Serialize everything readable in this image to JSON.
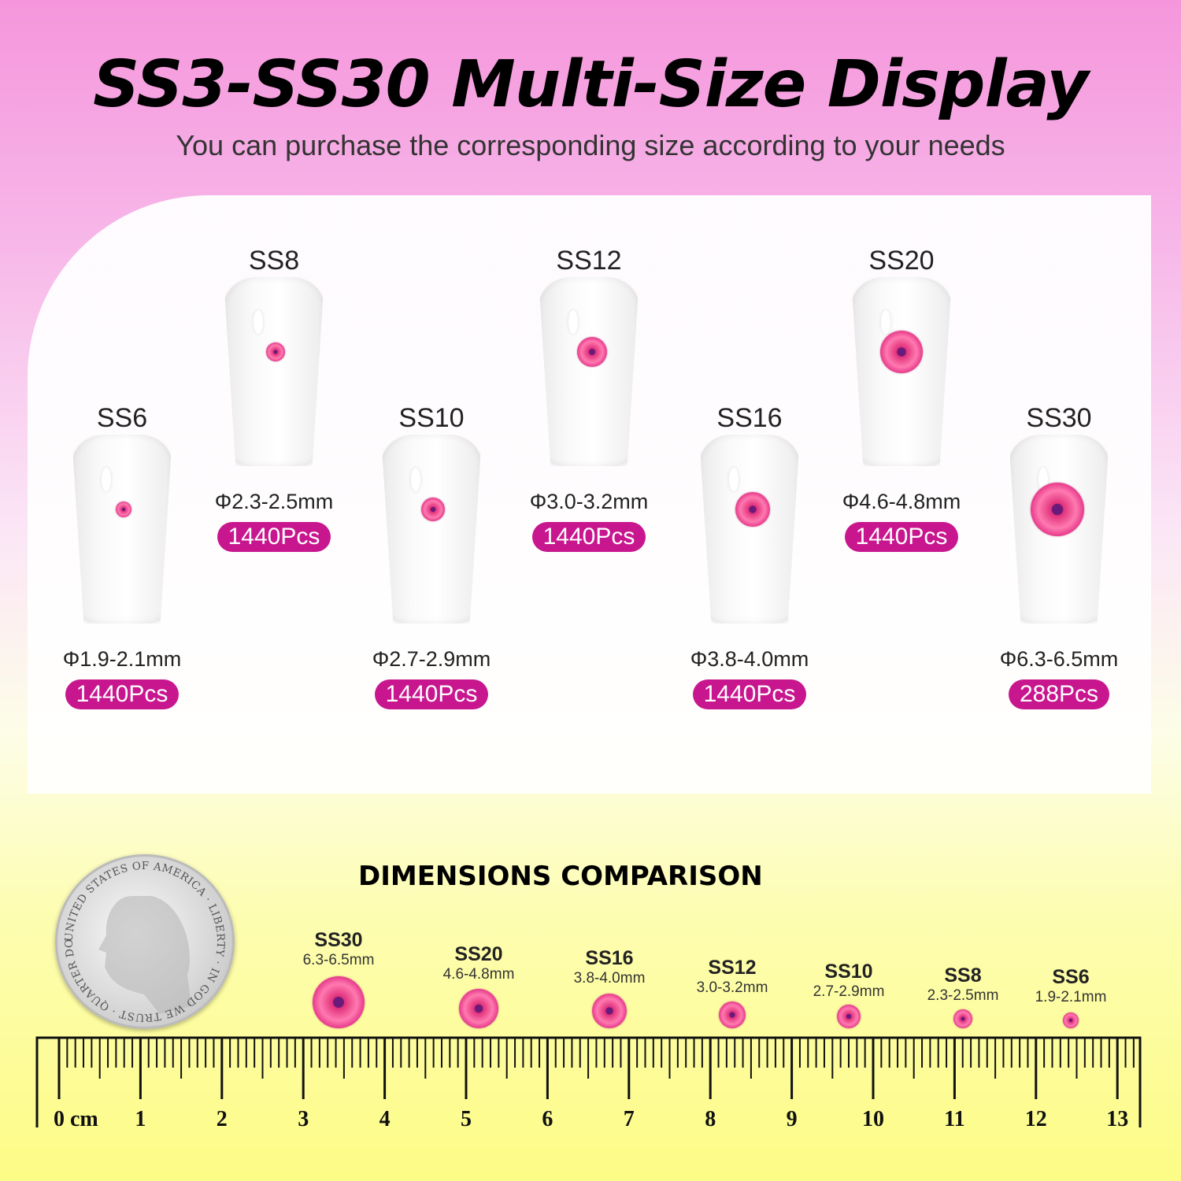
{
  "header": {
    "title": "SS3-SS30 Multi-Size Display",
    "subtitle": "You can purchase the corresponding size according to your needs"
  },
  "sizes": [
    {
      "name": "SS6",
      "diameter": "Φ1.9-2.1mm",
      "count": "1440Pcs"
    },
    {
      "name": "SS8",
      "diameter": "Φ2.3-2.5mm",
      "count": "1440Pcs"
    },
    {
      "name": "SS10",
      "diameter": "Φ2.7-2.9mm",
      "count": "1440Pcs"
    },
    {
      "name": "SS12",
      "diameter": "Φ3.0-3.2mm",
      "count": "1440Pcs"
    },
    {
      "name": "SS16",
      "diameter": "Φ3.8-4.0mm",
      "count": "1440Pcs"
    },
    {
      "name": "SS20",
      "diameter": "Φ4.6-4.8mm",
      "count": "1440Pcs"
    },
    {
      "name": "SS30",
      "diameter": "Φ6.3-6.5mm",
      "count": "288Pcs"
    }
  ],
  "comparison": {
    "title": "DIMENSIONS COMPARISON",
    "items": [
      {
        "name": "SS30",
        "size": "6.3-6.5mm"
      },
      {
        "name": "SS20",
        "size": "4.6-4.8mm"
      },
      {
        "name": "SS16",
        "size": "3.8-4.0mm"
      },
      {
        "name": "SS12",
        "size": "3.0-3.2mm"
      },
      {
        "name": "SS10",
        "size": "2.7-2.9mm"
      },
      {
        "name": "SS8",
        "size": "2.3-2.5mm"
      },
      {
        "name": "SS6",
        "size": "1.9-2.1mm"
      }
    ],
    "coin_text": "UNITED STATES OF AMERICA · LIBERTY · IN GOD WE TRUST · QUARTER DOLLAR",
    "ruler": {
      "unit": "cm",
      "labels": [
        "0 cm",
        "1",
        "2",
        "3",
        "4",
        "5",
        "6",
        "7",
        "8",
        "9",
        "10",
        "11",
        "12",
        "13"
      ]
    }
  },
  "colors": {
    "badge": "#c8168f",
    "gem": "#e73c8c",
    "top": "#f596dc",
    "bottom": "#fdfc86"
  }
}
